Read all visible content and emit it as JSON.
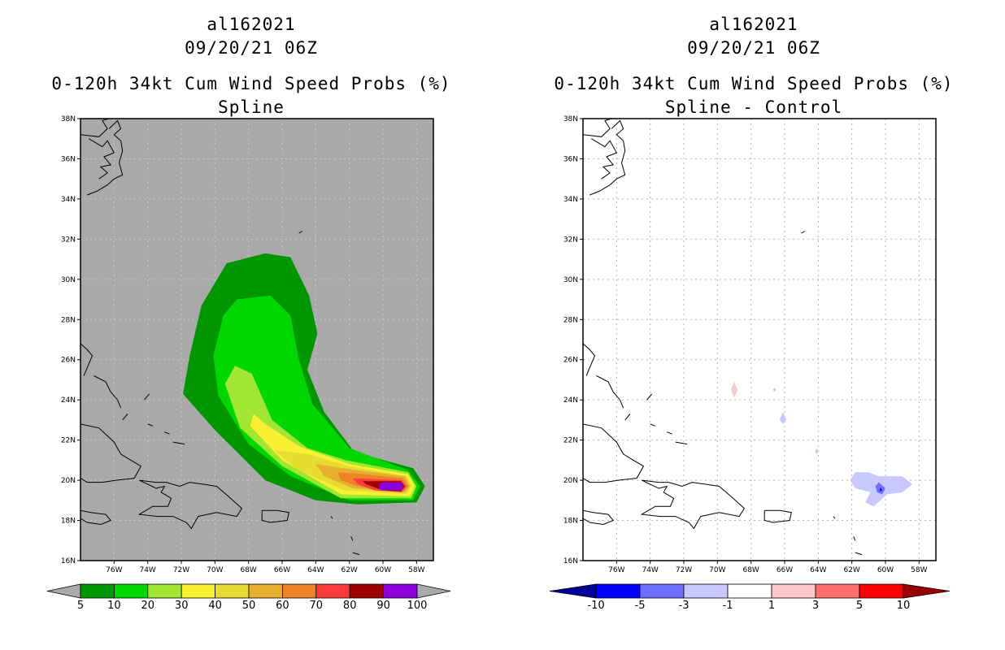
{
  "panels": [
    {
      "storm_id": "al162021",
      "datetime": "09/20/21 06Z",
      "product": "0-120h 34kt Cum Wind Speed Probs (%)",
      "subtitle": "Spline",
      "background": "#a9a9a9",
      "colorbar_labels": [
        "5",
        "10",
        "20",
        "30",
        "40",
        "50",
        "60",
        "70",
        "80",
        "90",
        "100"
      ],
      "colorbar_colors": [
        "#009600",
        "#00d600",
        "#a0e632",
        "#faf032",
        "#e6dc32",
        "#e6af2d",
        "#f08228",
        "#fa3c3c",
        "#a00000",
        "#8c00dc"
      ],
      "colorbar_end_left": "#aaaaaa",
      "colorbar_end_right": "#aaaaaa"
    },
    {
      "storm_id": "al162021",
      "datetime": "09/20/21 06Z",
      "product": "0-120h 34kt Cum Wind Speed Probs (%)",
      "subtitle": "Spline - Control",
      "background": "#ffffff",
      "colorbar_labels": [
        "-10",
        "-5",
        "-3",
        "-1",
        "1",
        "3",
        "5",
        "10"
      ],
      "colorbar_colors": [
        "#0000ff",
        "#6e6eff",
        "#c8c8ff",
        "#ffffff",
        "#ffc8c8",
        "#ff6e6e",
        "#ff0000"
      ],
      "colorbar_end_left": "#00009b",
      "colorbar_end_right": "#9b0000"
    }
  ],
  "axes": {
    "lat_labels": [
      "38N",
      "36N",
      "34N",
      "32N",
      "30N",
      "28N",
      "26N",
      "24N",
      "22N",
      "20N",
      "18N",
      "16N"
    ],
    "lon_labels": [
      "76W",
      "74W",
      "72W",
      "70W",
      "68W",
      "66W",
      "64W",
      "62W",
      "60W",
      "58W"
    ]
  },
  "map_data": {
    "lat_range": [
      16,
      38
    ],
    "lon_range": [
      -78,
      -57
    ],
    "spline_contours": [
      {
        "level": 5,
        "color": "#009600",
        "points": [
          [
            -70.8,
            28.7
          ],
          [
            -69.3,
            30.8
          ],
          [
            -67.0,
            31.3
          ],
          [
            -65.5,
            31.1
          ],
          [
            -64.4,
            29.2
          ],
          [
            -63.9,
            27.3
          ],
          [
            -64.5,
            25.5
          ],
          [
            -63.5,
            23.4
          ],
          [
            -61.7,
            21.4
          ],
          [
            -58.2,
            20.6
          ],
          [
            -57.5,
            19.7
          ],
          [
            -58.0,
            18.9
          ],
          [
            -61.5,
            18.8
          ],
          [
            -64.0,
            19.0
          ],
          [
            -67.0,
            20.0
          ],
          [
            -70.0,
            22.5
          ],
          [
            -71.9,
            24.3
          ],
          [
            -71.5,
            26.2
          ]
        ]
      },
      {
        "level": 10,
        "color": "#00d600",
        "points": [
          [
            -70.1,
            26.2
          ],
          [
            -69.5,
            28.2
          ],
          [
            -68.7,
            29.0
          ],
          [
            -66.7,
            29.2
          ],
          [
            -65.5,
            28.2
          ],
          [
            -65.0,
            26.0
          ],
          [
            -64.2,
            23.8
          ],
          [
            -62.0,
            21.6
          ],
          [
            -58.5,
            20.5
          ],
          [
            -57.8,
            19.7
          ],
          [
            -58.2,
            19.0
          ],
          [
            -62.0,
            19.0
          ],
          [
            -65.5,
            20.2
          ],
          [
            -68.0,
            21.8
          ],
          [
            -69.8,
            24.2
          ]
        ]
      },
      {
        "level": 20,
        "color": "#a0e632",
        "points": [
          [
            -69.4,
            24.8
          ],
          [
            -68.8,
            25.7
          ],
          [
            -67.8,
            25.3
          ],
          [
            -66.6,
            23.0
          ],
          [
            -64.5,
            21.6
          ],
          [
            -62.2,
            21.0
          ],
          [
            -58.5,
            20.4
          ],
          [
            -58.0,
            19.7
          ],
          [
            -58.3,
            19.1
          ],
          [
            -62.5,
            19.1
          ],
          [
            -66.0,
            20.7
          ],
          [
            -68.5,
            22.6
          ]
        ]
      },
      {
        "level": 30,
        "color": "#faf032",
        "points": [
          [
            -67.9,
            22.7
          ],
          [
            -67.7,
            23.3
          ],
          [
            -67.0,
            22.8
          ],
          [
            -65.0,
            21.7
          ],
          [
            -62.0,
            20.8
          ],
          [
            -58.5,
            20.3
          ],
          [
            -58.1,
            19.7
          ],
          [
            -58.4,
            19.2
          ],
          [
            -62.5,
            19.3
          ],
          [
            -66.0,
            21.0
          ]
        ]
      },
      {
        "level": 40,
        "color": "#e6dc32",
        "points": [
          [
            -66.5,
            21.5
          ],
          [
            -64.5,
            21.3
          ],
          [
            -62.0,
            20.7
          ],
          [
            -58.6,
            20.2
          ],
          [
            -58.3,
            19.7
          ],
          [
            -58.6,
            19.3
          ],
          [
            -62.3,
            19.5
          ],
          [
            -65.0,
            20.5
          ]
        ]
      },
      {
        "level": 50,
        "color": "#e6af2d",
        "points": [
          [
            -64.0,
            20.8
          ],
          [
            -61.5,
            20.5
          ],
          [
            -58.7,
            20.2
          ],
          [
            -58.4,
            19.7
          ],
          [
            -58.7,
            19.4
          ],
          [
            -61.8,
            19.6
          ],
          [
            -63.5,
            20.2
          ]
        ]
      },
      {
        "level": 60,
        "color": "#f08228",
        "points": [
          [
            -62.7,
            20.4
          ],
          [
            -61.0,
            20.3
          ],
          [
            -58.8,
            20.1
          ],
          [
            -58.5,
            19.7
          ],
          [
            -58.8,
            19.4
          ],
          [
            -61.5,
            19.7
          ],
          [
            -62.5,
            20.0
          ]
        ]
      },
      {
        "level": 70,
        "color": "#fa3c3c",
        "points": [
          [
            -61.8,
            20.1
          ],
          [
            -58.9,
            20.0
          ],
          [
            -58.6,
            19.7
          ],
          [
            -58.9,
            19.4
          ],
          [
            -60.5,
            19.5
          ],
          [
            -61.5,
            19.8
          ]
        ]
      },
      {
        "level": 80,
        "color": "#a00000",
        "points": [
          [
            -61.2,
            19.95
          ],
          [
            -58.95,
            19.95
          ],
          [
            -58.7,
            19.7
          ],
          [
            -58.95,
            19.45
          ],
          [
            -60.0,
            19.5
          ],
          [
            -61.0,
            19.8
          ]
        ]
      },
      {
        "level": 90,
        "color": "#8c00dc",
        "points": [
          [
            -60.1,
            19.9
          ],
          [
            -58.95,
            19.9
          ],
          [
            -58.75,
            19.7
          ],
          [
            -58.95,
            19.5
          ],
          [
            -60.1,
            19.5
          ],
          [
            -60.3,
            19.7
          ]
        ]
      }
    ],
    "difference_features": [
      {
        "kind": "positive_1_3",
        "color": "#ffc8c8",
        "points": [
          [
            -69.0,
            24.9
          ],
          [
            -68.8,
            24.5
          ],
          [
            -69.0,
            24.1
          ],
          [
            -69.2,
            24.5
          ]
        ]
      },
      {
        "kind": "negative_1_3",
        "color": "#c8c8ff",
        "points": [
          [
            -66.1,
            23.4
          ],
          [
            -65.9,
            23.0
          ],
          [
            -66.1,
            22.8
          ],
          [
            -66.3,
            23.0
          ]
        ]
      },
      {
        "kind": "negative_1_3",
        "color": "#c8c8ff",
        "points": [
          [
            -66.6,
            24.6
          ],
          [
            -66.5,
            24.5
          ],
          [
            -66.6,
            24.4
          ],
          [
            -66.7,
            24.5
          ]
        ]
      },
      {
        "kind": "negative_1_3",
        "color": "#c8c8ff",
        "points": [
          [
            -64.1,
            21.6
          ],
          [
            -64.0,
            21.4
          ],
          [
            -64.1,
            21.3
          ],
          [
            -64.2,
            21.4
          ]
        ]
      },
      {
        "kind": "negative_1_3",
        "color": "#c8c8ff",
        "points": [
          [
            -61.8,
            20.4
          ],
          [
            -61.0,
            20.4
          ],
          [
            -60.4,
            20.2
          ],
          [
            -59.0,
            20.2
          ],
          [
            -58.4,
            19.8
          ],
          [
            -59.0,
            19.4
          ],
          [
            -59.9,
            19.3
          ],
          [
            -60.7,
            18.7
          ],
          [
            -61.2,
            18.9
          ],
          [
            -60.9,
            19.4
          ],
          [
            -61.8,
            19.6
          ],
          [
            -62.1,
            20.0
          ]
        ]
      },
      {
        "kind": "negative_3_5",
        "color": "#6e6eff",
        "points": [
          [
            -60.4,
            19.9
          ],
          [
            -60.0,
            19.6
          ],
          [
            -60.2,
            19.3
          ],
          [
            -60.5,
            19.4
          ],
          [
            -60.6,
            19.7
          ]
        ]
      },
      {
        "kind": "negative_5_10",
        "color": "#0000ff",
        "points": [
          [
            -60.3,
            19.65
          ],
          [
            -60.2,
            19.5
          ],
          [
            -60.35,
            19.45
          ]
        ]
      }
    ],
    "coastlines": [
      [
        [
          -76.3,
          37.5
        ],
        [
          -75.8,
          37.9
        ],
        [
          -75.6,
          37.5
        ],
        [
          -76.0,
          37.2
        ],
        [
          -75.6,
          36.9
        ],
        [
          -75.5,
          36.4
        ],
        [
          -75.7,
          35.8
        ],
        [
          -75.5,
          35.2
        ],
        [
          -76.0,
          35.0
        ],
        [
          -76.4,
          34.7
        ],
        [
          -77.0,
          34.4
        ],
        [
          -77.6,
          34.2
        ]
      ],
      [
        [
          -77.5,
          37.0
        ],
        [
          -76.7,
          36.6
        ],
        [
          -76.4,
          36.9
        ],
        [
          -76.0,
          36.3
        ],
        [
          -76.6,
          36.1
        ],
        [
          -76.2,
          35.7
        ],
        [
          -76.8,
          35.6
        ],
        [
          -76.4,
          35.3
        ],
        [
          -76.9,
          35.0
        ]
      ],
      [
        [
          -78.0,
          37.2
        ],
        [
          -76.9,
          37.1
        ],
        [
          -76.4,
          37.5
        ],
        [
          -76.7,
          37.9
        ],
        [
          -76.3,
          38.0
        ]
      ],
      [
        [
          -78.0,
          26.8
        ],
        [
          -77.6,
          26.5
        ],
        [
          -77.3,
          26.2
        ],
        [
          -77.5,
          25.8
        ],
        [
          -77.8,
          25.2
        ]
      ],
      [
        [
          -77.2,
          25.2
        ],
        [
          -76.5,
          24.9
        ],
        [
          -76.2,
          24.4
        ],
        [
          -75.8,
          24.0
        ],
        [
          -75.6,
          23.6
        ]
      ],
      [
        [
          -78.0,
          22.8
        ],
        [
          -76.9,
          22.6
        ],
        [
          -76.0,
          21.9
        ],
        [
          -75.6,
          21.3
        ],
        [
          -75.0,
          21.0
        ],
        [
          -74.4,
          20.7
        ],
        [
          -74.8,
          20.1
        ],
        [
          -75.9,
          20.0
        ],
        [
          -76.7,
          19.9
        ],
        [
          -77.6,
          19.9
        ],
        [
          -78.0,
          20.1
        ]
      ],
      [
        [
          -74.5,
          20.0
        ],
        [
          -73.5,
          19.9
        ],
        [
          -72.9,
          19.9
        ],
        [
          -72.1,
          19.7
        ],
        [
          -71.5,
          19.9
        ],
        [
          -70.7,
          19.8
        ],
        [
          -69.9,
          19.7
        ],
        [
          -69.2,
          19.2
        ],
        [
          -68.4,
          18.6
        ],
        [
          -68.7,
          18.2
        ],
        [
          -69.9,
          18.4
        ],
        [
          -71.0,
          18.2
        ],
        [
          -71.4,
          17.6
        ],
        [
          -71.7,
          17.9
        ],
        [
          -72.5,
          18.2
        ],
        [
          -73.4,
          18.2
        ],
        [
          -74.5,
          18.3
        ],
        [
          -73.7,
          18.7
        ],
        [
          -72.8,
          18.7
        ],
        [
          -72.6,
          19.1
        ],
        [
          -73.2,
          19.4
        ],
        [
          -73.0,
          19.7
        ],
        [
          -73.5,
          19.6
        ],
        [
          -74.5,
          20.0
        ]
      ],
      [
        [
          -78.0,
          18.5
        ],
        [
          -77.4,
          18.4
        ],
        [
          -76.5,
          18.3
        ],
        [
          -76.2,
          18.0
        ],
        [
          -76.8,
          17.8
        ],
        [
          -77.6,
          17.9
        ],
        [
          -78.0,
          18.1
        ]
      ],
      [
        [
          -67.2,
          18.5
        ],
        [
          -66.3,
          18.5
        ],
        [
          -65.6,
          18.4
        ],
        [
          -65.7,
          18.0
        ],
        [
          -66.7,
          17.9
        ],
        [
          -67.2,
          18.0
        ],
        [
          -67.2,
          18.5
        ]
      ],
      [
        [
          -63.1,
          18.2
        ],
        [
          -63.0,
          18.1
        ]
      ],
      [
        [
          -61.9,
          17.2
        ],
        [
          -61.8,
          17.0
        ]
      ],
      [
        [
          -61.8,
          16.4
        ],
        [
          -61.4,
          16.3
        ]
      ],
      [
        [
          -61.3,
          15.7
        ],
        [
          -61.4,
          15.9
        ]
      ],
      [
        [
          -65.0,
          32.3
        ],
        [
          -64.8,
          32.4
        ]
      ],
      [
        [
          -72.5,
          21.9
        ],
        [
          -71.8,
          21.8
        ]
      ],
      [
        [
          -73.0,
          22.4
        ],
        [
          -72.7,
          22.3
        ]
      ],
      [
        [
          -74.0,
          22.8
        ],
        [
          -73.7,
          22.7
        ]
      ],
      [
        [
          -75.5,
          23.0
        ],
        [
          -75.2,
          23.3
        ]
      ],
      [
        [
          -74.2,
          24.0
        ],
        [
          -73.9,
          24.3
        ]
      ]
    ]
  }
}
